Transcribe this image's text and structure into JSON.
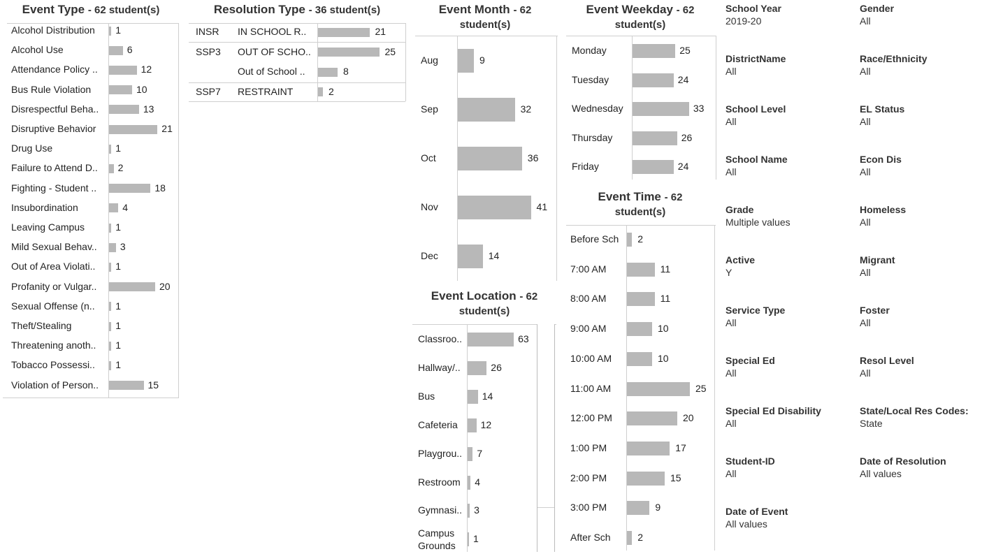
{
  "panels": {
    "event_type": {
      "title": "Event Type",
      "subtitle": "- 62 student(s)"
    },
    "resolution_type": {
      "title": "Resolution Type",
      "subtitle": "- 36 student(s)"
    },
    "event_month": {
      "title": "Event Month",
      "subtitle": "- 62",
      "subtitle2": "student(s)"
    },
    "event_weekday": {
      "title": "Event Weekday",
      "subtitle": "- 62",
      "subtitle2": "student(s)"
    },
    "event_time": {
      "title": "Event Time",
      "subtitle": "- 62",
      "subtitle2": "student(s)"
    },
    "event_location": {
      "title": "Event Location",
      "subtitle": "- 62",
      "subtitle2": "student(s)"
    }
  },
  "chart_data": [
    {
      "id": "event_type",
      "type": "bar",
      "categories": [
        "Alcohol Distribution",
        "Alcohol Use",
        "Attendance Policy ..",
        "Bus Rule Violation",
        "Disrespectful Beha..",
        "Disruptive Behavior",
        "Drug Use",
        "Failure to Attend D..",
        "Fighting - Student ..",
        "Insubordination",
        "Leaving Campus",
        "Mild Sexual Behav..",
        "Out of Area Violati..",
        "Profanity or Vulgar..",
        "Sexual Offense (n..",
        "Theft/Stealing",
        "Threatening anoth..",
        "Tobacco Possessi..",
        "Violation of Person.."
      ],
      "values": [
        1,
        6,
        12,
        10,
        13,
        21,
        1,
        2,
        18,
        4,
        1,
        3,
        1,
        20,
        1,
        1,
        1,
        1,
        15
      ],
      "title": "Event Type - 62 student(s)"
    },
    {
      "id": "resolution_type",
      "type": "bar",
      "codes": [
        "INSR",
        "SSP3",
        "",
        "SSP7"
      ],
      "categories": [
        "IN SCHOOL R..",
        "OUT OF SCHO..",
        "Out of School ..",
        "RESTRAINT"
      ],
      "values": [
        21,
        25,
        8,
        2
      ],
      "title": "Resolution Type - 36 student(s)"
    },
    {
      "id": "event_month",
      "type": "bar",
      "categories": [
        "Aug",
        "Sep",
        "Oct",
        "Nov",
        "Dec"
      ],
      "values": [
        9,
        32,
        36,
        41,
        14
      ],
      "title": "Event Month - 62 student(s)"
    },
    {
      "id": "event_weekday",
      "type": "bar",
      "categories": [
        "Monday",
        "Tuesday",
        "Wednesday",
        "Thursday",
        "Friday"
      ],
      "values": [
        25,
        24,
        33,
        26,
        24
      ],
      "title": "Event Weekday - 62 student(s)"
    },
    {
      "id": "event_time",
      "type": "bar",
      "categories": [
        "Before Sch",
        "7:00 AM",
        "8:00 AM",
        "9:00 AM",
        "10:00 AM",
        "11:00 AM",
        "12:00 PM",
        "1:00 PM",
        "2:00 PM",
        "3:00 PM",
        "After Sch"
      ],
      "values": [
        2,
        11,
        11,
        10,
        10,
        25,
        20,
        17,
        15,
        9,
        2
      ],
      "title": "Event Time - 62 student(s)"
    },
    {
      "id": "event_location",
      "type": "bar",
      "categories": [
        "Classroo..",
        "Hallway/..",
        "Bus",
        "Cafeteria",
        "Playgrou..",
        "Restroom",
        "Gymnasi..",
        "Campus Grounds"
      ],
      "values": [
        63,
        26,
        14,
        12,
        7,
        4,
        3,
        1
      ],
      "title": "Event Location - 62 student(s)"
    }
  ],
  "filters": [
    {
      "label": "School Year",
      "value": "2019-20"
    },
    {
      "label": "Gender",
      "value": "All"
    },
    {
      "label": "DistrictName",
      "value": "All"
    },
    {
      "label": "Race/Ethnicity",
      "value": "All"
    },
    {
      "label": "School Level",
      "value": "All"
    },
    {
      "label": "EL Status",
      "value": "All"
    },
    {
      "label": "School Name",
      "value": "All"
    },
    {
      "label": "Econ Dis",
      "value": "All"
    },
    {
      "label": "Grade",
      "value": "Multiple values"
    },
    {
      "label": "Homeless",
      "value": "All"
    },
    {
      "label": "Active",
      "value": "Y"
    },
    {
      "label": "Migrant",
      "value": "All"
    },
    {
      "label": "Service Type",
      "value": "All"
    },
    {
      "label": "Foster",
      "value": "All"
    },
    {
      "label": "Special Ed",
      "value": "All"
    },
    {
      "label": "Resol Level",
      "value": "All"
    },
    {
      "label": "Special Ed Disability",
      "value": "All"
    },
    {
      "label": "State/Local Res Codes:",
      "value": "State"
    },
    {
      "label": "Student-ID",
      "value": "All"
    },
    {
      "label": "Date of Resolution",
      "value": "All values"
    },
    {
      "label": "Date of Event",
      "value": "All values"
    }
  ]
}
